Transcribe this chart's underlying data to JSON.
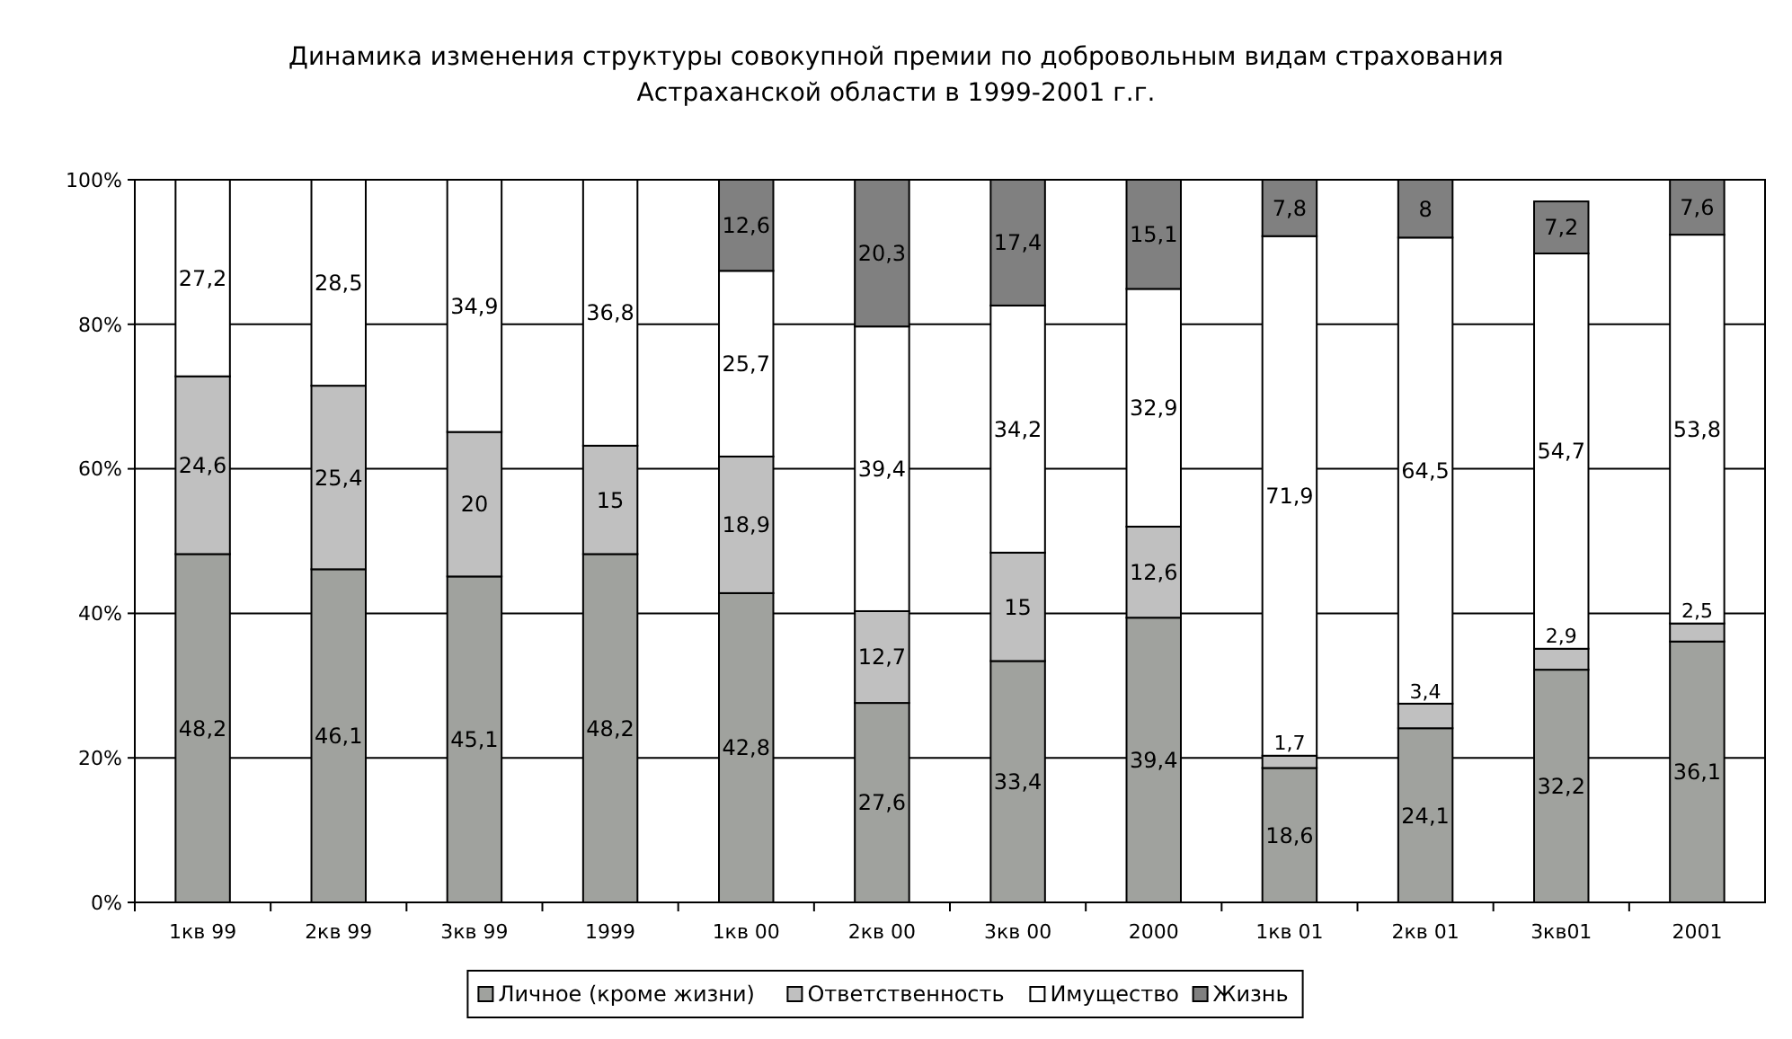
{
  "chart_data": {
    "type": "bar",
    "stacked": true,
    "title": "Динамика изменения структуры совокупной премии по добровольным видам страхования\nАстраханской области в 1999-2001 г.г.",
    "categories": [
      "1кв 99",
      "2кв 99",
      "3кв 99",
      "1999",
      "1кв 00",
      "2кв 00",
      "3кв 00",
      "2000",
      "1кв 01",
      "2кв 01",
      "3кв01",
      "2001"
    ],
    "series": [
      {
        "name": "Личное (кроме жизни)",
        "color": "#a0a29e",
        "values": [
          48.2,
          46.1,
          45.1,
          48.2,
          42.8,
          27.6,
          33.4,
          39.4,
          18.6,
          24.1,
          32.2,
          36.1
        ],
        "value_labels": [
          "48,2",
          "46,1",
          "45,1",
          "48,2",
          "42,8",
          "27,6",
          "33,4",
          "39,4",
          "18,6",
          "24,1",
          "32,2",
          "36,1"
        ]
      },
      {
        "name": "Ответственность",
        "color": "#c0c0c0",
        "values": [
          24.6,
          25.4,
          20,
          15,
          18.9,
          12.7,
          15,
          12.6,
          1.7,
          3.4,
          2.9,
          2.5
        ],
        "value_labels": [
          "24,6",
          "25,4",
          "20",
          "15",
          "18,9",
          "12,7",
          "15",
          "12,6",
          "1,7",
          "3,4",
          "2,9",
          "2,5"
        ]
      },
      {
        "name": "Имущество",
        "color": "#ffffff",
        "values": [
          27.2,
          28.5,
          34.9,
          36.8,
          25.7,
          39.4,
          34.2,
          32.9,
          71.9,
          64.5,
          54.7,
          53.8
        ],
        "value_labels": [
          "27,2",
          "28,5",
          "34,9",
          "36,8",
          "25,7",
          "39,4",
          "34,2",
          "32,9",
          "71,9",
          "64,5",
          "54,7",
          "53,8"
        ]
      },
      {
        "name": "Жизнь",
        "color": "#808080",
        "values": [
          null,
          null,
          null,
          null,
          12.6,
          20.3,
          17.4,
          15.1,
          7.8,
          8,
          7.2,
          7.6
        ],
        "value_labels": [
          null,
          null,
          null,
          null,
          "12,6",
          "20,3",
          "17,4",
          "15,1",
          "7,8",
          "8",
          "7,2",
          "7,6"
        ]
      }
    ],
    "ylim": [
      0,
      100
    ],
    "yticks": [
      {
        "value": 0,
        "label": "0%"
      },
      {
        "value": 20,
        "label": "20%"
      },
      {
        "value": 40,
        "label": "40%"
      },
      {
        "value": 60,
        "label": "60%"
      },
      {
        "value": 80,
        "label": "80%"
      },
      {
        "value": 100,
        "label": "100%"
      }
    ],
    "grid": "y",
    "legend": "bottom"
  }
}
